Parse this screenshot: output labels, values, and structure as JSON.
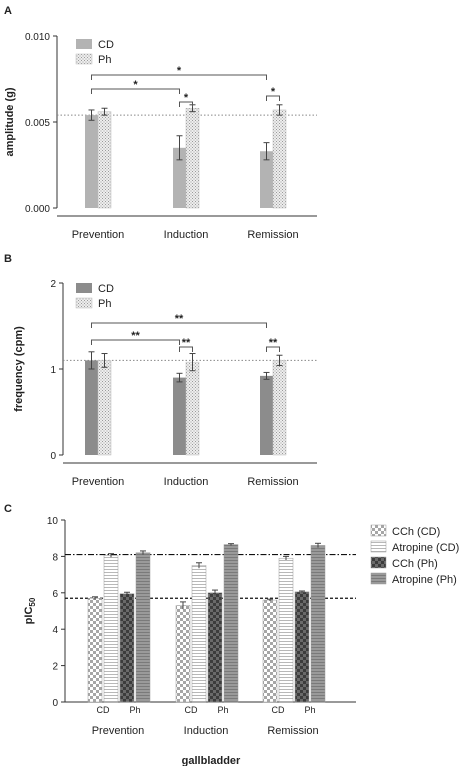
{
  "colors": {
    "axis": "#333333",
    "cd_bar": "#b3b3b3",
    "ph_bar": "#e6e6e6",
    "cd_bar_b": "#8c8c8c",
    "dark_bar": "#555555",
    "atropine_ph": "#8a8a8a",
    "reference_line": "#888888"
  },
  "chart_data": [
    {
      "panel": "A",
      "type": "bar",
      "title": "",
      "xlabel": "",
      "ylabel": "amplitude (g)",
      "categories": [
        "Prevention",
        "Induction",
        "Remission"
      ],
      "ylim": [
        0,
        0.01
      ],
      "yticks": [
        0.0,
        0.005,
        0.01
      ],
      "ytick_labels": [
        "0.000",
        "0.005",
        "0.010"
      ],
      "reference_line": 0.0054,
      "legend": "top-left",
      "series": [
        {
          "name": "CD",
          "values": [
            0.0054,
            0.0035,
            0.0033
          ],
          "errors": [
            0.0003,
            0.0007,
            0.0005
          ]
        },
        {
          "name": "Ph",
          "values": [
            0.0056,
            0.0058,
            0.0057
          ],
          "errors": [
            0.0002,
            0.0002,
            0.0003
          ]
        }
      ],
      "significance": [
        {
          "from": [
            0,
            0
          ],
          "to": [
            1,
            0
          ],
          "label": "*"
        },
        {
          "from": [
            0,
            0
          ],
          "to": [
            2,
            0
          ],
          "label": "*"
        },
        {
          "from": [
            1,
            0
          ],
          "to": [
            1,
            1
          ],
          "label": "*"
        },
        {
          "from": [
            2,
            0
          ],
          "to": [
            2,
            1
          ],
          "label": "*"
        }
      ]
    },
    {
      "panel": "B",
      "type": "bar",
      "title": "",
      "xlabel": "",
      "ylabel": "frequency (cpm)",
      "categories": [
        "Prevention",
        "Induction",
        "Remission"
      ],
      "ylim": [
        0,
        2
      ],
      "yticks": [
        0,
        1,
        2
      ],
      "ytick_labels": [
        "0",
        "1",
        "2"
      ],
      "reference_line": 1.1,
      "legend": "top-left",
      "series": [
        {
          "name": "CD",
          "values": [
            1.1,
            0.9,
            0.92
          ],
          "errors": [
            0.1,
            0.05,
            0.04
          ]
        },
        {
          "name": "Ph",
          "values": [
            1.1,
            1.08,
            1.1
          ],
          "errors": [
            0.08,
            0.1,
            0.06
          ]
        }
      ],
      "significance": [
        {
          "from": [
            0,
            0
          ],
          "to": [
            1,
            0
          ],
          "label": "**"
        },
        {
          "from": [
            0,
            0
          ],
          "to": [
            2,
            0
          ],
          "label": "**"
        },
        {
          "from": [
            1,
            0
          ],
          "to": [
            1,
            1
          ],
          "label": "**"
        },
        {
          "from": [
            2,
            0
          ],
          "to": [
            2,
            1
          ],
          "label": "**"
        }
      ]
    },
    {
      "panel": "C",
      "type": "bar",
      "title": "",
      "xlabel": "gallbladder",
      "ylabel_main": "pIC",
      "ylabel_sub": "50",
      "categories": [
        "Prevention",
        "Induction",
        "Remission"
      ],
      "sub_labels": [
        "CD",
        "Ph"
      ],
      "ylim": [
        0,
        10
      ],
      "yticks": [
        0,
        2,
        4,
        6,
        8,
        10
      ],
      "ytick_labels": [
        "0",
        "2",
        "4",
        "6",
        "8",
        "10"
      ],
      "reference_lines": [
        8.1,
        5.7
      ],
      "legend": "right",
      "series": [
        {
          "name": "CCh (CD)",
          "values": [
            5.7,
            5.3,
            5.6
          ],
          "errors": [
            0.08,
            0.2,
            0.05
          ]
        },
        {
          "name": "Atropine (CD)",
          "values": [
            8.05,
            7.5,
            7.9
          ],
          "errors": [
            0.1,
            0.15,
            0.1
          ]
        },
        {
          "name": "CCh (Ph)",
          "values": [
            5.95,
            6.0,
            6.05
          ],
          "errors": [
            0.08,
            0.15,
            0.05
          ]
        },
        {
          "name": "Atropine (Ph)",
          "values": [
            8.2,
            8.65,
            8.6
          ],
          "errors": [
            0.1,
            0.05,
            0.12
          ]
        }
      ]
    }
  ]
}
